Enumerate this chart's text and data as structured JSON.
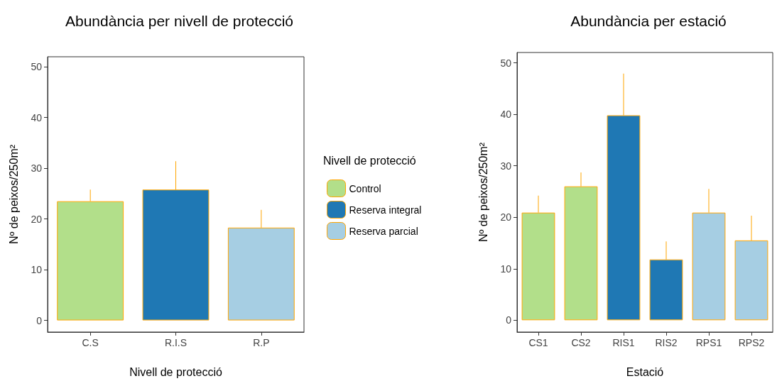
{
  "chart_data": [
    {
      "type": "bar",
      "title": "Abundància per nivell de protecció",
      "xlabel": "Nivell de protecció",
      "ylabel": "Nº de peixos/250m²",
      "legend_title": "Nivell de protecció",
      "categories": [
        "C.S",
        "R.I.S",
        "R.P"
      ],
      "series": [
        {
          "name": "Control",
          "color": "#b2df8a",
          "values": [
            23.5,
            null,
            null
          ],
          "errors": [
            [
              23.5,
              25.8
            ],
            null,
            null
          ]
        },
        {
          "name": "Reserva integral",
          "color": "#1f78b4",
          "values": [
            null,
            25.8,
            null
          ],
          "errors": [
            null,
            [
              25.8,
              31.4
            ],
            null
          ]
        },
        {
          "name": "Reserva parcial",
          "color": "#a6cee3",
          "values": [
            null,
            null,
            18.3
          ],
          "errors": [
            null,
            null,
            [
              18.3,
              21.8
            ]
          ]
        }
      ],
      "ylim": [
        -2.3,
        52
      ],
      "yticks": [
        0,
        10,
        20,
        30,
        40,
        50
      ],
      "grid": false,
      "legend": "right"
    },
    {
      "type": "bar",
      "title": "Abundància per estació",
      "xlabel": "Estació",
      "ylabel": "Nº de peixos/250m²",
      "categories": [
        "CS1",
        "CS2",
        "RIS1",
        "RIS2",
        "RPS1",
        "RPS2"
      ],
      "values": [
        20.9,
        26.0,
        39.8,
        11.8,
        20.9,
        15.5
      ],
      "colors": [
        "#b2df8a",
        "#b2df8a",
        "#1f78b4",
        "#1f78b4",
        "#a6cee3",
        "#a6cee3"
      ],
      "errors": [
        [
          20.9,
          24.2
        ],
        [
          26.0,
          28.7
        ],
        [
          39.8,
          47.9
        ],
        [
          11.8,
          15.3
        ],
        [
          20.9,
          25.5
        ],
        [
          15.5,
          20.3
        ]
      ],
      "ylim": [
        -2.3,
        52
      ],
      "yticks": [
        0,
        10,
        20,
        30,
        40,
        50
      ],
      "grid": false
    }
  ]
}
